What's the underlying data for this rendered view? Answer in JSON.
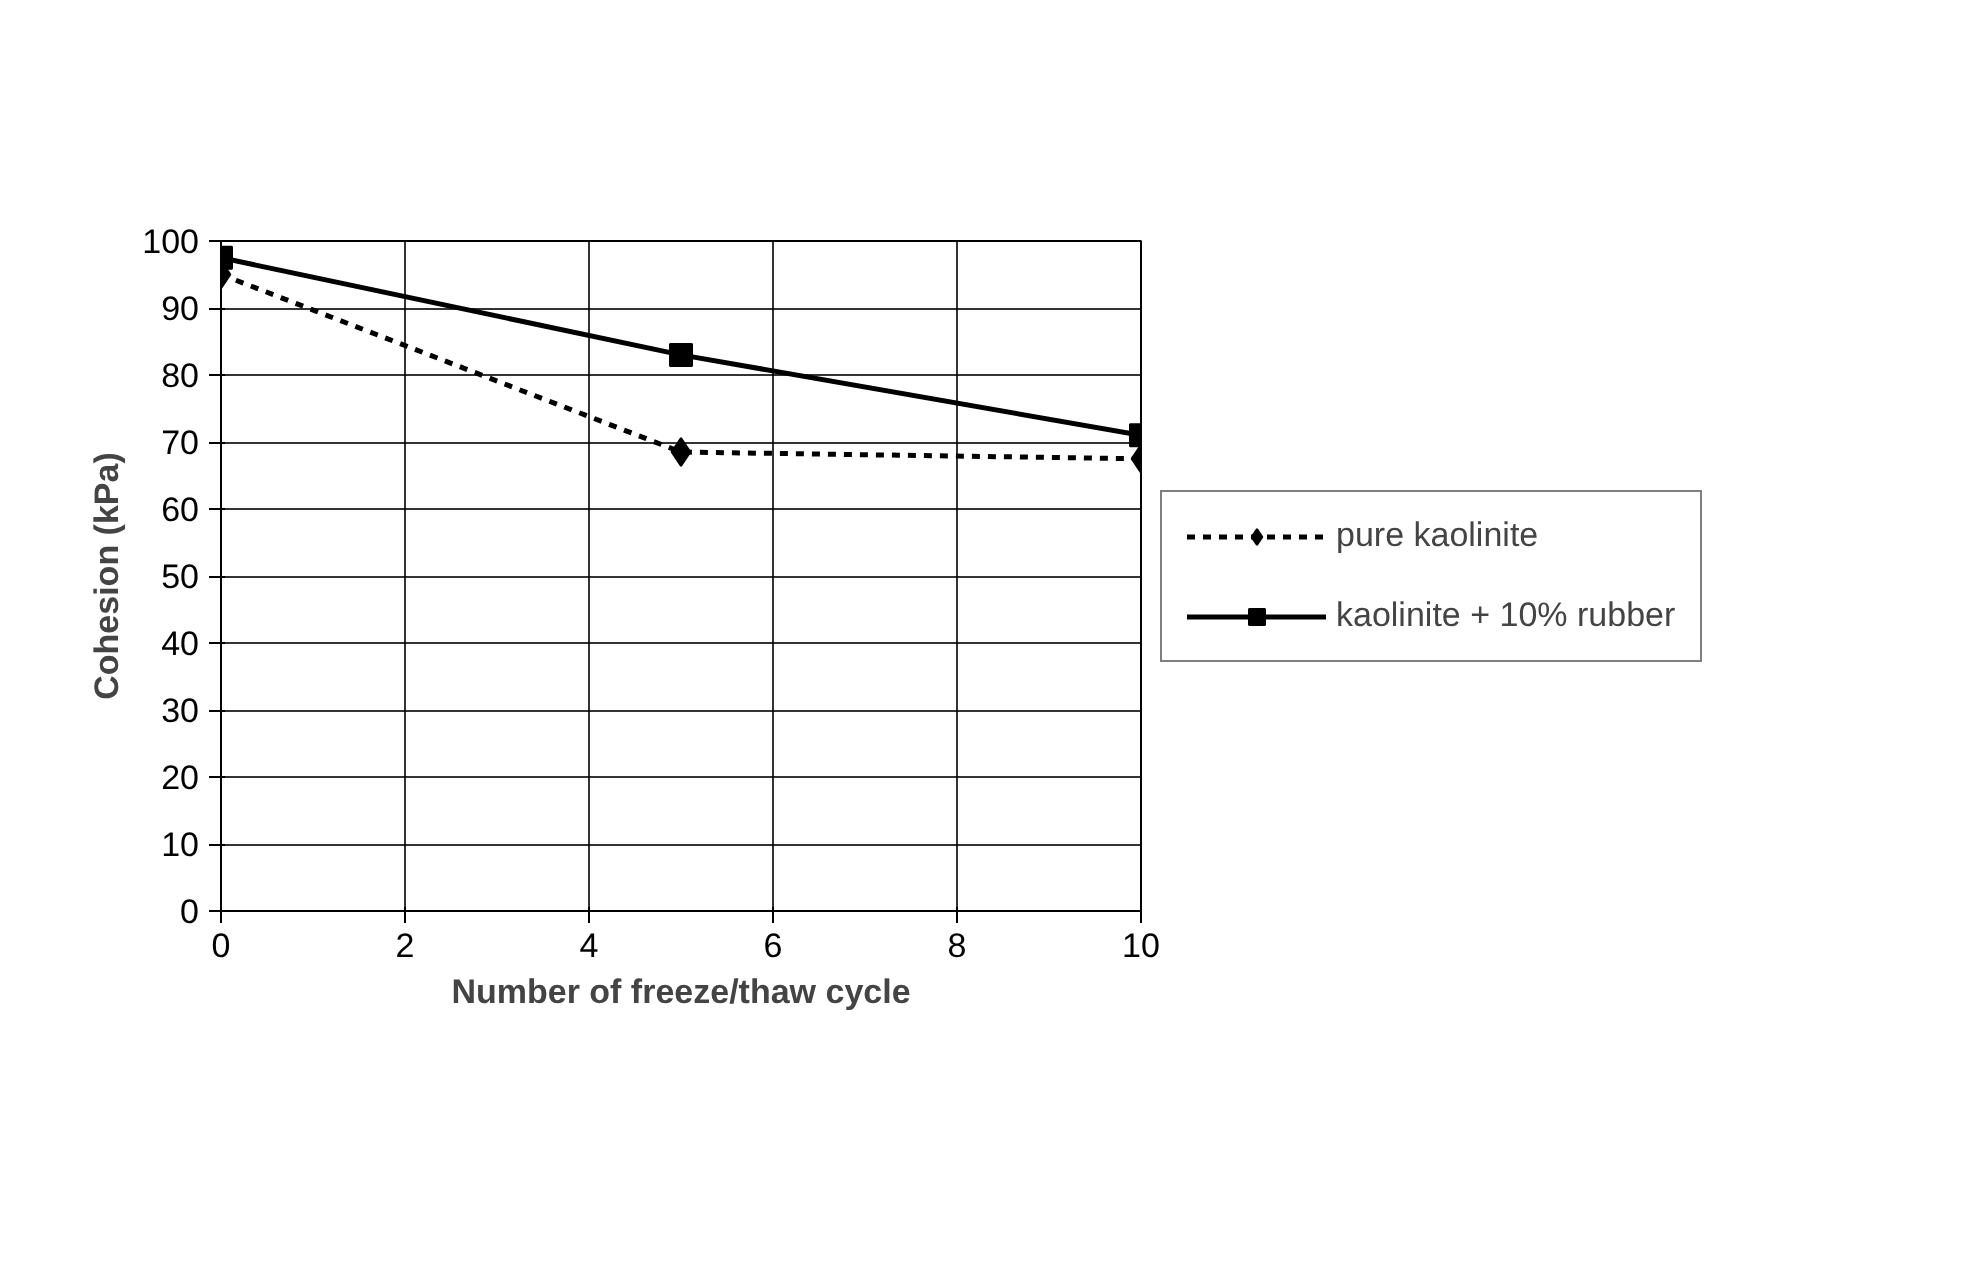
{
  "chart_data": {
    "type": "line",
    "xlabel": "Number of freeze/thaw cycle",
    "ylabel": "Cohesion (kPa)",
    "x": [
      0,
      5,
      10
    ],
    "series": [
      {
        "name": "pure kaolinite",
        "color": "#000000",
        "values": [
          95,
          68.5,
          67.5
        ],
        "marker": "diamond",
        "line_style": "dotted"
      },
      {
        "name": "kaolinite + 10% rubber",
        "color": "#000000",
        "values": [
          97.5,
          83,
          71
        ],
        "marker": "square",
        "line_style": "solid"
      }
    ],
    "xlim": [
      0,
      10
    ],
    "xticks": [
      0,
      2,
      4,
      6,
      8,
      10
    ],
    "ylim": [
      0,
      100
    ],
    "yticks": [
      0,
      10,
      20,
      30,
      40,
      50,
      60,
      70,
      80,
      90,
      100
    ],
    "grid": true,
    "legend": "right"
  }
}
